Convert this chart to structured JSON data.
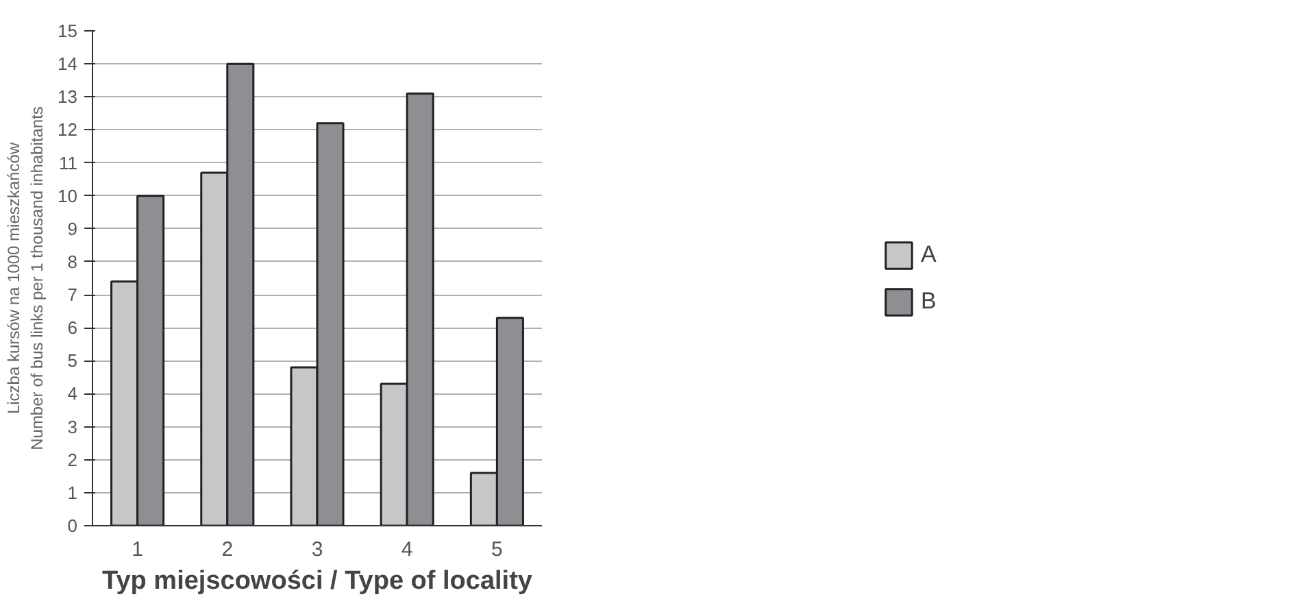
{
  "chart_data": {
    "type": "bar",
    "xlabel": "Typ miejscowości / Type of locality",
    "ylabel": "Liczba kursów na 1000 mieszkańców\nNumber of bus links per 1 thousand inhabitants",
    "categories": [
      "1",
      "2",
      "3",
      "4",
      "5"
    ],
    "series": [
      {
        "name": "A",
        "color": "#c6c7c9",
        "values": [
          7.4,
          10.7,
          4.8,
          4.3,
          1.6
        ]
      },
      {
        "name": "B",
        "color": "#8e8f93",
        "values": [
          10,
          14,
          12.2,
          13.1,
          6.3
        ]
      }
    ],
    "ylim": [
      0,
      15
    ],
    "yticks": [
      0,
      1,
      2,
      3,
      4,
      5,
      6,
      7,
      8,
      9,
      10,
      11,
      12,
      13,
      14,
      15
    ],
    "grid": "y",
    "legend": "right"
  }
}
